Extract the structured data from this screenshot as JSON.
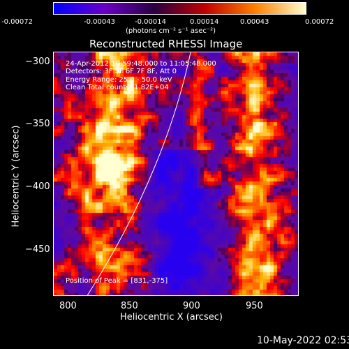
{
  "colorbar": {
    "tick_labels": [
      "-0.00072",
      "-0.00043",
      "-0.00014",
      "0.00014",
      "0.00043",
      "0.00072"
    ],
    "unit_label": "(photons cm⁻² s⁻¹ asec⁻²)",
    "colors": [
      "#0000ff",
      "#6a00c8",
      "#2a0040",
      "#c00000",
      "#ff8000",
      "#ffffd0"
    ]
  },
  "plot": {
    "title": "Reconstructed RHESSI Image",
    "info_lines": [
      "24-Apr-2012 10:59:48.000 to 11:05:48.000",
      "Detectors: 3F 5F 6F 7F 8F, Att 0",
      "Energy Range: 25.0 - 50.0 keV",
      "Clean    Total counts: 1.82E+04"
    ],
    "peak_text": "Position of Peak = [831,-375]",
    "x_axis_label": "Heliocentric X (arcsec)",
    "y_axis_label": "Heliocentric Y (arcsec)",
    "x_ticks": [
      "800",
      "850",
      "900",
      "950"
    ],
    "y_ticks": [
      "−300",
      "−350",
      "−400",
      "−450"
    ],
    "x_range": [
      790,
      985
    ],
    "y_range": [
      -484,
      -290
    ],
    "peak": [
      831,
      -375
    ]
  },
  "footer": {
    "timestamp": "10-May-2022 02:53"
  }
}
